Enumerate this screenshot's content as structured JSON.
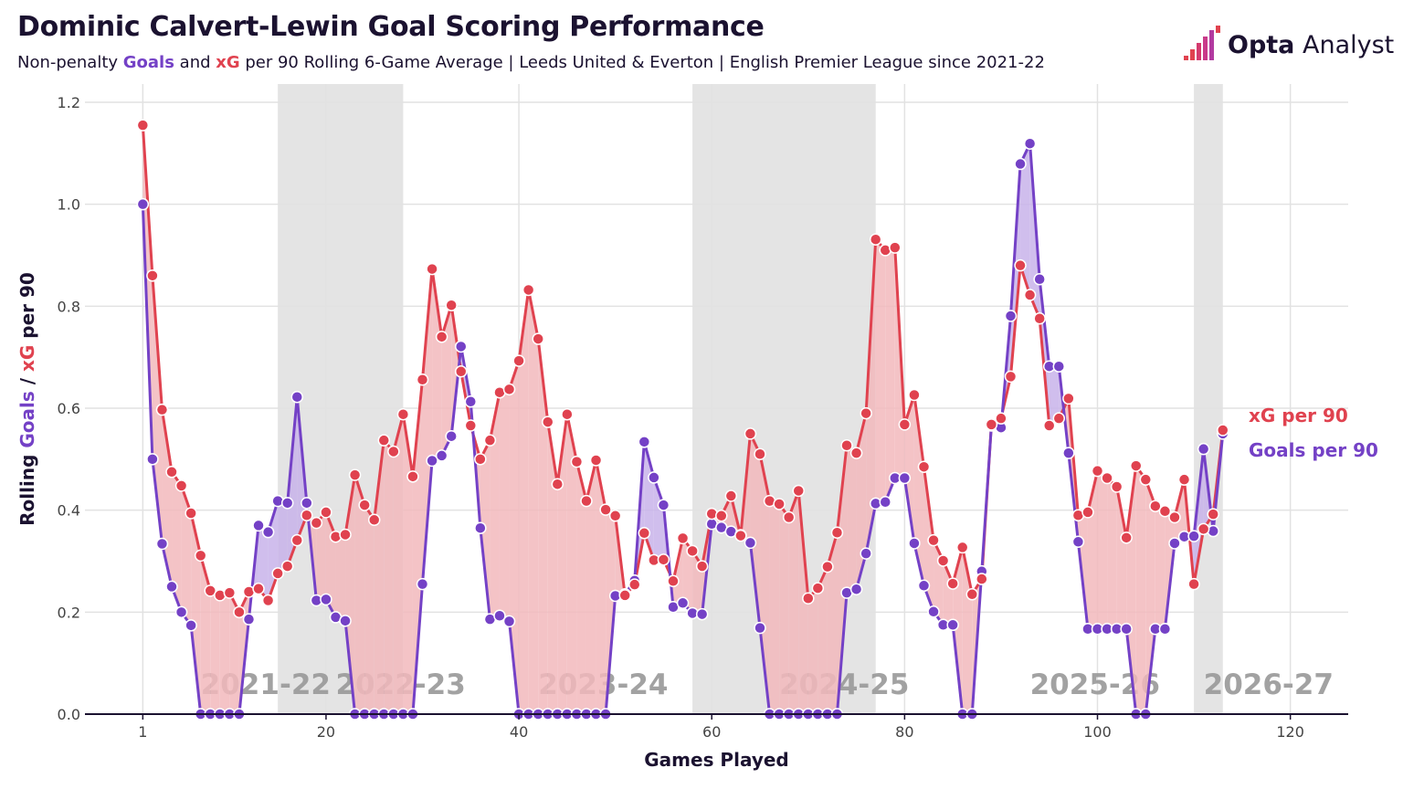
{
  "title": "Dominic Calvert-Lewin Goal Scoring Performance",
  "subtitle": {
    "pre": "Non-penalty ",
    "goals_word": "Goals",
    "mid": " and ",
    "xg_word": "xG",
    "post": " per 90 Rolling 6-Game Average | Leeds United & Everton | English Premier League since 2021-22"
  },
  "brand": {
    "name_bold": "Opta",
    "name_rest": " Analyst",
    "icon": "opta-bars-icon"
  },
  "colors": {
    "goals": "#7441c6",
    "xg": "#e0424f",
    "xg_fill": "#f2b8bc",
    "goals_fill": "#c8b3ea",
    "season_band": "#e4e4e4",
    "grid": "#e2e2e2"
  },
  "chart_data": {
    "type": "line",
    "title": "Dominic Calvert-Lewin Goal Scoring Performance",
    "xlabel": "Games Played",
    "ylabel_parts": [
      "Rolling ",
      "Goals",
      " / ",
      "xG",
      " per 90"
    ],
    "xlim": [
      -5,
      126
    ],
    "ylim": [
      0,
      1.2
    ],
    "xticks": [
      1,
      20,
      40,
      60,
      80,
      100,
      120
    ],
    "yticks": [
      "0.0",
      "0.2",
      "0.4",
      "0.6",
      "0.8",
      "1.0",
      "1.2"
    ],
    "grid": true,
    "season_labels": [
      {
        "label": "2021-22",
        "x": 7
      },
      {
        "label": "2022-23",
        "x": 21
      },
      {
        "label": "2023-24",
        "x": 42
      },
      {
        "label": "2024-25",
        "x": 67
      },
      {
        "label": "2025-26",
        "x": 93
      },
      {
        "label": "2026-27",
        "x": 111
      }
    ],
    "shaded_bands": [
      [
        15,
        28
      ],
      [
        58,
        77
      ],
      [
        110,
        113
      ]
    ],
    "series": [
      {
        "name": "xG per 90",
        "values": [
          1.155,
          0.86,
          0.597,
          0.475,
          0.448,
          0.394,
          0.311,
          0.242,
          0.233,
          0.238,
          0.2,
          0.24,
          0.246,
          0.223,
          0.276,
          0.29,
          0.341,
          0.39,
          0.375,
          0.396,
          0.348,
          0.352,
          0.469,
          0.41,
          0.381,
          0.537,
          0.515,
          0.588,
          0.466,
          0.656,
          0.873,
          0.74,
          0.802,
          0.672,
          0.566,
          0.5,
          0.537,
          0.631,
          0.637,
          0.693,
          0.832,
          0.736,
          0.573,
          0.451,
          0.588,
          0.495,
          0.418,
          0.498,
          0.401,
          0.389,
          0.233,
          0.254,
          0.355,
          0.302,
          0.303,
          0.261,
          0.345,
          0.32,
          0.29,
          0.393,
          0.389,
          0.428,
          0.35,
          0.55,
          0.51,
          0.418,
          0.412,
          0.386,
          0.438,
          0.227,
          0.247,
          0.289,
          0.356,
          0.527,
          0.512,
          0.59,
          0.931,
          0.91,
          0.915,
          0.568,
          0.626,
          0.485,
          0.341,
          0.301,
          0.256,
          0.327,
          0.235,
          0.265,
          0.568,
          0.58,
          0.662,
          0.88,
          0.822,
          0.776,
          0.566,
          0.58,
          0.619,
          0.39,
          0.396,
          0.477,
          0.463,
          0.446,
          0.346,
          0.487,
          0.46,
          0.408,
          0.398,
          0.386,
          0.46,
          0.255,
          0.363,
          0.392,
          0.557
        ]
      },
      {
        "name": "Goals per 90",
        "values": [
          1.0,
          0.5,
          0.334,
          0.25,
          0.2,
          0.174,
          0,
          0,
          0,
          0,
          0,
          0.186,
          0.37,
          0.357,
          0.418,
          0.414,
          0.622,
          0.414,
          0.223,
          0.225,
          0.19,
          0.183,
          0,
          0,
          0,
          0,
          0,
          0,
          0,
          0.255,
          0.497,
          0.507,
          0.545,
          0.721,
          0.613,
          0.365,
          0.186,
          0.193,
          0.182,
          0,
          0,
          0,
          0,
          0,
          0,
          0,
          0,
          0,
          0,
          0.232,
          0.235,
          0.262,
          0.534,
          0.464,
          0.41,
          0.21,
          0.218,
          0.198,
          0.196,
          0.373,
          0.366,
          0.358,
          0.351,
          0.336,
          0.169,
          0,
          0,
          0,
          0,
          0,
          0,
          0,
          0,
          0.238,
          0.245,
          0.315,
          0.413,
          0.416,
          0.463,
          0.463,
          0.335,
          0.252,
          0.201,
          0.175,
          0.175,
          0,
          0,
          0.28,
          0.566,
          0.562,
          0.781,
          1.079,
          1.119,
          0.853,
          0.682,
          0.682,
          0.512,
          0.338,
          0.167,
          0.167,
          0.167,
          0.167,
          0.167,
          0,
          0,
          0.167,
          0.167,
          0.335,
          0.348,
          0.349,
          0.52,
          0.359,
          0.55
        ]
      }
    ]
  }
}
